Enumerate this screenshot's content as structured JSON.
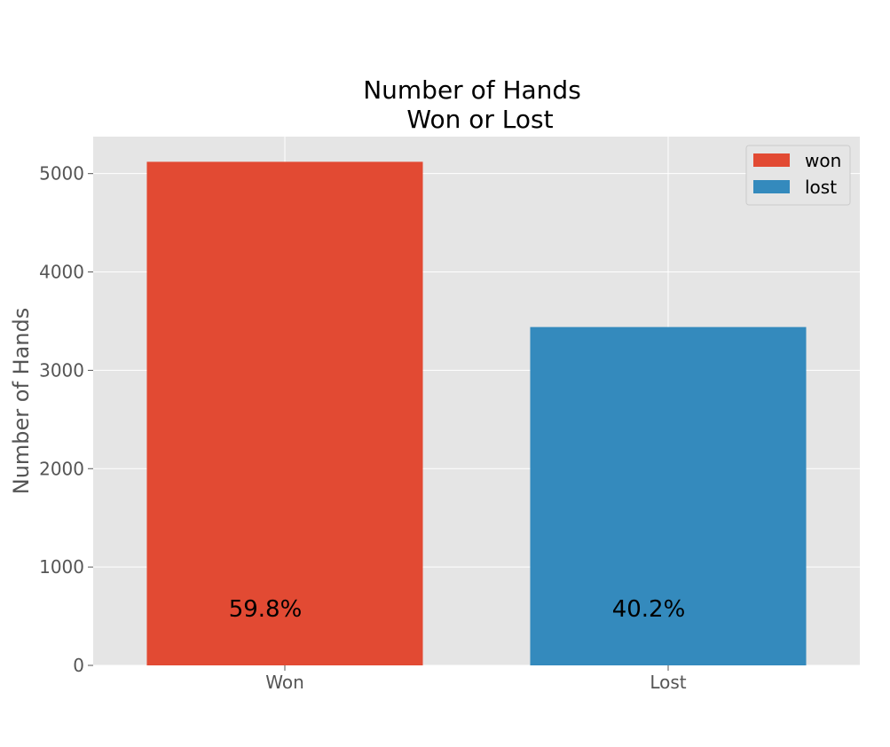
{
  "chart_data": {
    "type": "bar",
    "title_lines": [
      "Number of Hands",
      "Won or Lost"
    ],
    "xlabel": "",
    "ylabel": "Number of Hands",
    "categories": [
      "Won",
      "Lost"
    ],
    "series": [
      {
        "name": "won",
        "values": [
          5120,
          0
        ],
        "color": "#E24A33",
        "bar_label": "59.8%"
      },
      {
        "name": "lost",
        "values": [
          0,
          3440
        ],
        "color": "#348ABD",
        "bar_label": "40.2%"
      }
    ],
    "yticks": [
      0,
      1000,
      2000,
      3000,
      4000,
      5000
    ],
    "ylim": [
      0,
      5376
    ],
    "grid": true,
    "legend_position": "top-right",
    "background_color": "#E5E5E5",
    "grid_color": "#FFFFFF"
  }
}
